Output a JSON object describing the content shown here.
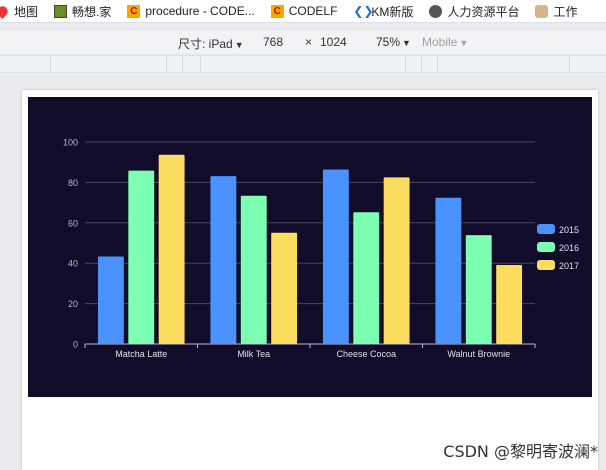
{
  "bookmarks": [
    {
      "label": "地图",
      "icon": "map-pin-icon"
    },
    {
      "label": "畅想.家",
      "icon": "photo-icon"
    },
    {
      "label": "procedure - CODE...",
      "icon": "codelf-icon"
    },
    {
      "label": "CODELF",
      "icon": "codelf-icon"
    },
    {
      "label": "KM新版",
      "icon": "km-icon"
    },
    {
      "label": "人力资源平台",
      "icon": "globe-icon"
    },
    {
      "label": "工作",
      "icon": "person-icon"
    }
  ],
  "device_toolbar": {
    "size_label": "尺寸: iPad",
    "width": "768",
    "times": "×",
    "height": "1024",
    "zoom": "75%",
    "mode": "Mobile"
  },
  "watermark": "CSDN @黎明寄波澜*",
  "colors": {
    "background": "#100c2a",
    "series": [
      "#4992ff",
      "#7cffb2",
      "#fddd60"
    ]
  },
  "chart_data": {
    "type": "bar",
    "categories": [
      "Matcha Latte",
      "Milk Tea",
      "Cheese Cocoa",
      "Walnut Brownie"
    ],
    "series": [
      {
        "name": "2015",
        "values": [
          43.3,
          83.1,
          86.4,
          72.4
        ]
      },
      {
        "name": "2016",
        "values": [
          85.8,
          73.4,
          65.2,
          53.9
        ]
      },
      {
        "name": "2017",
        "values": [
          93.7,
          55.1,
          82.5,
          39.1
        ]
      }
    ],
    "ylim": [
      0,
      100
    ],
    "yticks": [
      "0",
      "20",
      "40",
      "60",
      "80",
      "100"
    ],
    "grid": true,
    "legend": "right"
  }
}
